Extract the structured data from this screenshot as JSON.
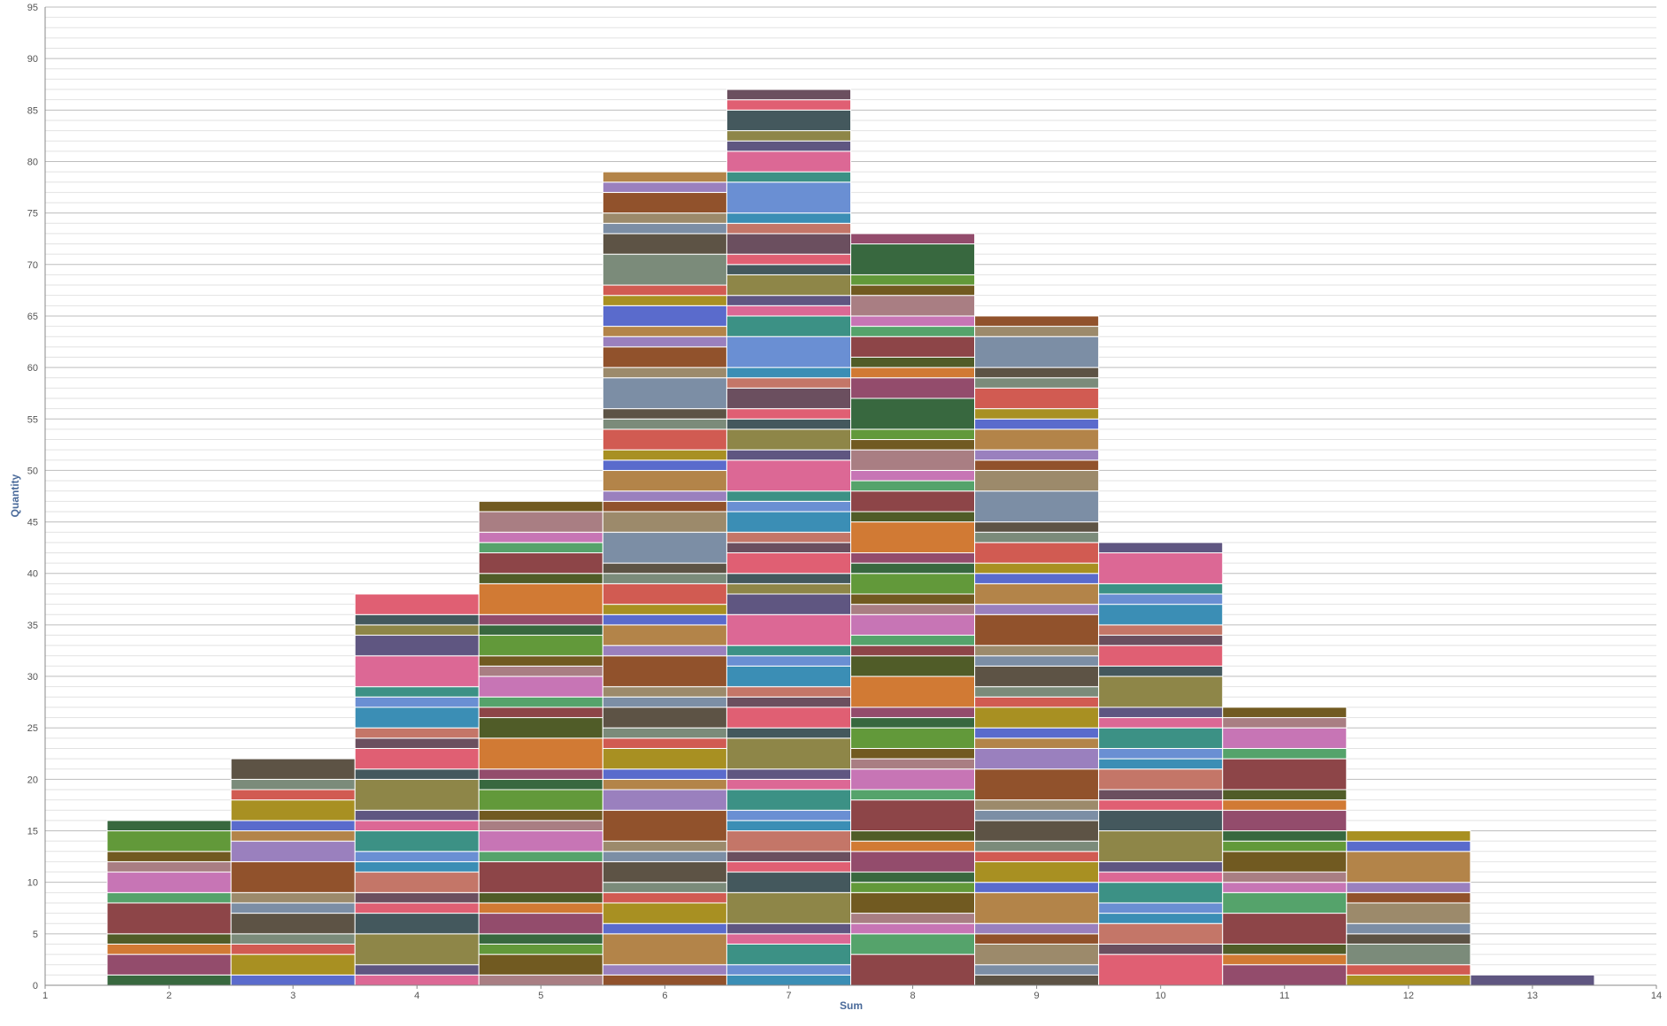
{
  "chart_data": {
    "type": "bar",
    "subtype": "stacked-histogram",
    "xlabel": "Sum",
    "ylabel": "Quantity",
    "xlim": [
      1,
      14
    ],
    "ylim": [
      0,
      95
    ],
    "x_ticks": [
      "1",
      "2",
      "3",
      "4",
      "5",
      "6",
      "7",
      "8",
      "9",
      "10",
      "11",
      "12",
      "13",
      "14"
    ],
    "y_ticks": [
      "0",
      "5",
      "10",
      "15",
      "20",
      "25",
      "30",
      "35",
      "40",
      "45",
      "50",
      "55",
      "60",
      "65",
      "70",
      "75",
      "80",
      "85",
      "90",
      "95"
    ],
    "grid": true,
    "minor_grid_step": 1,
    "major_grid_step": 5,
    "legend": "none",
    "bar_width": 1,
    "bars": [
      {
        "x": 2,
        "total": 16
      },
      {
        "x": 3,
        "total": 22
      },
      {
        "x": 4,
        "total": 38
      },
      {
        "x": 5,
        "total": 47
      },
      {
        "x": 6,
        "total": 79
      },
      {
        "x": 7,
        "total": 87
      },
      {
        "x": 8,
        "total": 73
      },
      {
        "x": 9,
        "total": 65
      },
      {
        "x": 10,
        "total": 43
      },
      {
        "x": 11,
        "total": 27
      },
      {
        "x": 12,
        "total": 15
      },
      {
        "x": 13,
        "total": 1
      }
    ],
    "palette": [
      "#38683f",
      "#9a80be",
      "#c47668",
      "#934c6c",
      "#b38449",
      "#3b8eb5",
      "#d17a34",
      "#5a6bcc",
      "#6a8fd3",
      "#505c28",
      "#a89022",
      "#3c9185",
      "#8d4548",
      "#d15b52",
      "#dc6895",
      "#55a36b",
      "#7b8b7a",
      "#5f5681",
      "#c775b5",
      "#5d5345",
      "#8e8648",
      "#a97e83",
      "#7c8ea5",
      "#44585d",
      "#715a21",
      "#9c8a6b",
      "#e05f73",
      "#62993a",
      "#91522c",
      "#6b4f5f"
    ]
  }
}
